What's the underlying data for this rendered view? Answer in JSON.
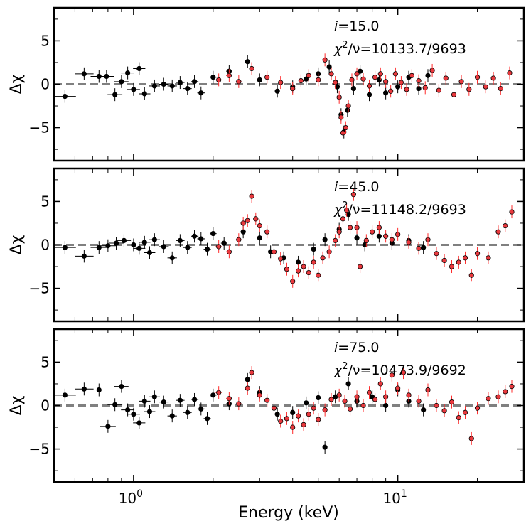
{
  "chart_data": {
    "type": "scatter",
    "xlabel": "Energy (keV)",
    "xscale": "log",
    "xlim": [
      0.5,
      30
    ],
    "x_tick_labels": [
      {
        "value": 1,
        "base": "10",
        "exp": "0"
      },
      {
        "value": 10,
        "base": "10",
        "exp": "1"
      }
    ],
    "ylabel": "Δχ",
    "ylim": [
      -8.8,
      8.8
    ],
    "y_tick_labels": [
      "5",
      "0",
      "−5"
    ],
    "y_tick_values": [
      5,
      0,
      -5
    ],
    "reference_line": {
      "y": 0,
      "style": "dashed",
      "color": "#808080"
    },
    "series_colors": {
      "black": "#000000",
      "red": "#e8383d",
      "red_error": "#ff2a2a"
    },
    "panels": [
      {
        "incl_prefix": "i",
        "incl_value": "=15.0",
        "chi2_symbol": "χ",
        "chi2_exp": "2",
        "chi2_text": "/ν=10133.7/9693",
        "black_points": [
          [
            0.55,
            -1.4
          ],
          [
            0.65,
            1.2
          ],
          [
            0.74,
            0.9
          ],
          [
            0.79,
            0.9
          ],
          [
            0.85,
            -1.2
          ],
          [
            0.9,
            0.3
          ],
          [
            0.95,
            1.3
          ],
          [
            1.0,
            -0.6
          ],
          [
            1.05,
            1.8
          ],
          [
            1.1,
            -1.1
          ],
          [
            1.2,
            -0.2
          ],
          [
            1.3,
            0.0
          ],
          [
            1.4,
            -0.2
          ],
          [
            1.5,
            0.2
          ],
          [
            1.6,
            -0.5
          ],
          [
            1.7,
            0.3
          ],
          [
            1.8,
            -1.0
          ],
          [
            2.0,
            0.8
          ],
          [
            2.3,
            1.5
          ],
          [
            2.7,
            2.6
          ],
          [
            3.0,
            0.5
          ],
          [
            3.5,
            -0.8
          ],
          [
            4.0,
            -0.3
          ],
          [
            4.5,
            0.6
          ],
          [
            5.0,
            1.2
          ],
          [
            5.5,
            2.0
          ],
          [
            5.9,
            -0.3
          ],
          [
            6.1,
            -3.5
          ],
          [
            6.25,
            -5.5
          ],
          [
            6.45,
            -3.0
          ],
          [
            6.8,
            -0.5
          ],
          [
            7.2,
            1.5
          ],
          [
            7.8,
            -1.2
          ],
          [
            8.5,
            0.5
          ],
          [
            9.0,
            -1.0
          ],
          [
            10.0,
            -0.3
          ],
          [
            11.0,
            0.8
          ],
          [
            12.0,
            -0.5
          ],
          [
            13.0,
            1.0
          ]
        ],
        "red_points": [
          [
            2.1,
            0.5
          ],
          [
            2.3,
            1.0
          ],
          [
            2.5,
            0.3
          ],
          [
            2.8,
            1.8
          ],
          [
            3.2,
            0.8
          ],
          [
            3.6,
            0.2
          ],
          [
            4.0,
            -0.5
          ],
          [
            4.3,
            0.4
          ],
          [
            4.6,
            1.0
          ],
          [
            5.0,
            0.5
          ],
          [
            5.3,
            2.8
          ],
          [
            5.6,
            1.2
          ],
          [
            5.8,
            0.2
          ],
          [
            6.0,
            -1.5
          ],
          [
            6.1,
            -3.8
          ],
          [
            6.2,
            -5.6
          ],
          [
            6.35,
            -5.0
          ],
          [
            6.5,
            -2.5
          ],
          [
            6.7,
            0.5
          ],
          [
            7.0,
            1.2
          ],
          [
            7.4,
            0.6
          ],
          [
            7.8,
            -0.2
          ],
          [
            8.2,
            0.8
          ],
          [
            8.6,
            1.2
          ],
          [
            9.0,
            0.3
          ],
          [
            9.4,
            -0.8
          ],
          [
            9.8,
            1.2
          ],
          [
            10.3,
            0.2
          ],
          [
            10.8,
            -0.6
          ],
          [
            11.3,
            1.0
          ],
          [
            12.0,
            0.4
          ],
          [
            12.7,
            -0.4
          ],
          [
            13.5,
            1.6
          ],
          [
            14.3,
            -0.7
          ],
          [
            15.2,
            0.7
          ],
          [
            16.3,
            -1.2
          ],
          [
            17.4,
            0.3
          ],
          [
            18.6,
            -0.6
          ],
          [
            20.0,
            0.8
          ],
          [
            21.5,
            -0.3
          ],
          [
            23.0,
            0.7
          ],
          [
            24.5,
            -0.5
          ],
          [
            26.5,
            1.3
          ]
        ]
      },
      {
        "incl_prefix": "i",
        "incl_value": "=45.0",
        "chi2_symbol": "χ",
        "chi2_exp": "2",
        "chi2_text": "/ν=11148.2/9693",
        "black_points": [
          [
            0.55,
            -0.3
          ],
          [
            0.65,
            -1.3
          ],
          [
            0.74,
            -0.3
          ],
          [
            0.8,
            -0.1
          ],
          [
            0.86,
            0.2
          ],
          [
            0.92,
            0.5
          ],
          [
            1.0,
            0.0
          ],
          [
            1.05,
            -0.4
          ],
          [
            1.1,
            0.3
          ],
          [
            1.15,
            -0.9
          ],
          [
            1.2,
            0.6
          ],
          [
            1.3,
            -0.2
          ],
          [
            1.4,
            -1.5
          ],
          [
            1.5,
            0.5
          ],
          [
            1.6,
            -0.3
          ],
          [
            1.7,
            1.0
          ],
          [
            1.8,
            0.7
          ],
          [
            1.9,
            -0.5
          ],
          [
            2.0,
            1.3
          ],
          [
            2.2,
            0.2
          ],
          [
            2.6,
            1.5
          ],
          [
            3.0,
            0.8
          ],
          [
            3.3,
            -0.8
          ],
          [
            3.7,
            -1.5
          ],
          [
            4.2,
            -2.0
          ],
          [
            4.8,
            -0.5
          ],
          [
            5.3,
            0.6
          ],
          [
            6.0,
            1.8
          ],
          [
            6.5,
            3.5
          ],
          [
            7.0,
            0.8
          ],
          [
            7.5,
            0.0
          ],
          [
            8.5,
            1.0
          ],
          [
            9.5,
            0.2
          ],
          [
            11.0,
            0.5
          ],
          [
            12.5,
            -0.3
          ]
        ],
        "red_points": [
          [
            2.1,
            -0.2
          ],
          [
            2.3,
            -0.8
          ],
          [
            2.5,
            0.6
          ],
          [
            2.6,
            2.5
          ],
          [
            2.7,
            2.8
          ],
          [
            2.8,
            5.6
          ],
          [
            2.9,
            3.0
          ],
          [
            3.0,
            2.2
          ],
          [
            3.2,
            1.5
          ],
          [
            3.4,
            -0.8
          ],
          [
            3.6,
            -1.6
          ],
          [
            3.8,
            -2.8
          ],
          [
            4.0,
            -4.2
          ],
          [
            4.2,
            -3.0
          ],
          [
            4.4,
            -2.5
          ],
          [
            4.6,
            -3.2
          ],
          [
            4.8,
            -2.0
          ],
          [
            5.0,
            -3.5
          ],
          [
            5.2,
            -1.5
          ],
          [
            5.5,
            -0.8
          ],
          [
            5.8,
            0.5
          ],
          [
            6.0,
            1.5
          ],
          [
            6.2,
            3.0
          ],
          [
            6.4,
            4.0
          ],
          [
            6.6,
            2.0
          ],
          [
            6.8,
            5.8
          ],
          [
            7.0,
            2.0
          ],
          [
            7.2,
            -2.5
          ],
          [
            7.6,
            0.5
          ],
          [
            8.0,
            1.5
          ],
          [
            8.5,
            2.0
          ],
          [
            9.0,
            1.0
          ],
          [
            9.5,
            0.6
          ],
          [
            10.0,
            1.2
          ],
          [
            11.0,
            0.3
          ],
          [
            12.0,
            -0.4
          ],
          [
            13.0,
            0.6
          ],
          [
            14.0,
            -1.0
          ],
          [
            15.0,
            -1.8
          ],
          [
            16.0,
            -2.5
          ],
          [
            17.0,
            -2.0
          ],
          [
            18.0,
            -1.5
          ],
          [
            19.0,
            -3.5
          ],
          [
            20.0,
            -1.0
          ],
          [
            22.0,
            -1.5
          ],
          [
            24.0,
            1.5
          ],
          [
            25.5,
            2.2
          ],
          [
            27.0,
            3.8
          ]
        ]
      },
      {
        "incl_prefix": "i",
        "incl_value": "=75.0",
        "chi2_symbol": "χ",
        "chi2_exp": "2",
        "chi2_text": "/ν=10473.9/9692",
        "black_points": [
          [
            0.55,
            1.2
          ],
          [
            0.65,
            1.9
          ],
          [
            0.74,
            1.8
          ],
          [
            0.8,
            -2.4
          ],
          [
            0.85,
            0.1
          ],
          [
            0.9,
            2.2
          ],
          [
            0.95,
            -0.5
          ],
          [
            1.0,
            -1.0
          ],
          [
            1.05,
            -2.0
          ],
          [
            1.1,
            0.5
          ],
          [
            1.15,
            -0.7
          ],
          [
            1.2,
            1.0
          ],
          [
            1.3,
            0.4
          ],
          [
            1.4,
            -1.2
          ],
          [
            1.5,
            0.6
          ],
          [
            1.6,
            -0.8
          ],
          [
            1.7,
            0.7
          ],
          [
            1.8,
            -0.4
          ],
          [
            1.9,
            -1.5
          ],
          [
            2.0,
            1.2
          ],
          [
            2.3,
            0.2
          ],
          [
            2.7,
            3.0
          ],
          [
            3.0,
            1.5
          ],
          [
            3.5,
            -1.0
          ],
          [
            4.0,
            -0.8
          ],
          [
            4.5,
            0.3
          ],
          [
            5.0,
            0.9
          ],
          [
            5.3,
            -4.8
          ],
          [
            5.8,
            1.0
          ],
          [
            6.5,
            2.5
          ],
          [
            7.0,
            0.5
          ],
          [
            8.0,
            1.0
          ],
          [
            9.0,
            0.0
          ],
          [
            10.0,
            1.8
          ],
          [
            11.0,
            0.5
          ],
          [
            12.5,
            -0.5
          ]
        ],
        "red_points": [
          [
            2.1,
            1.5
          ],
          [
            2.3,
            0.8
          ],
          [
            2.5,
            0.2
          ],
          [
            2.7,
            2.0
          ],
          [
            2.8,
            3.8
          ],
          [
            3.0,
            1.2
          ],
          [
            3.2,
            0.6
          ],
          [
            3.4,
            -0.3
          ],
          [
            3.6,
            -1.8
          ],
          [
            3.8,
            -1.5
          ],
          [
            4.0,
            -2.5
          ],
          [
            4.2,
            -1.2
          ],
          [
            4.4,
            -2.2
          ],
          [
            4.6,
            -1.0
          ],
          [
            4.8,
            -0.3
          ],
          [
            5.0,
            -1.6
          ],
          [
            5.3,
            -0.5
          ],
          [
            5.6,
            0.7
          ],
          [
            6.0,
            1.2
          ],
          [
            6.3,
            0.5
          ],
          [
            6.6,
            -0.4
          ],
          [
            7.0,
            1.0
          ],
          [
            7.4,
            0.0
          ],
          [
            7.8,
            1.5
          ],
          [
            8.2,
            0.7
          ],
          [
            8.6,
            2.5
          ],
          [
            9.0,
            1.0
          ],
          [
            9.5,
            3.5
          ],
          [
            10.0,
            2.0
          ],
          [
            10.5,
            3.8
          ],
          [
            11.0,
            1.2
          ],
          [
            12.0,
            0.5
          ],
          [
            13.0,
            1.8
          ],
          [
            14.0,
            0.0
          ],
          [
            15.0,
            -0.6
          ],
          [
            16.0,
            0.4
          ],
          [
            17.0,
            -1.4
          ],
          [
            18.0,
            -0.8
          ],
          [
            19.0,
            -3.8
          ],
          [
            20.0,
            -0.3
          ],
          [
            22.0,
            0.8
          ],
          [
            24.0,
            1.0
          ],
          [
            25.5,
            1.6
          ],
          [
            27.0,
            2.2
          ]
        ]
      }
    ]
  }
}
